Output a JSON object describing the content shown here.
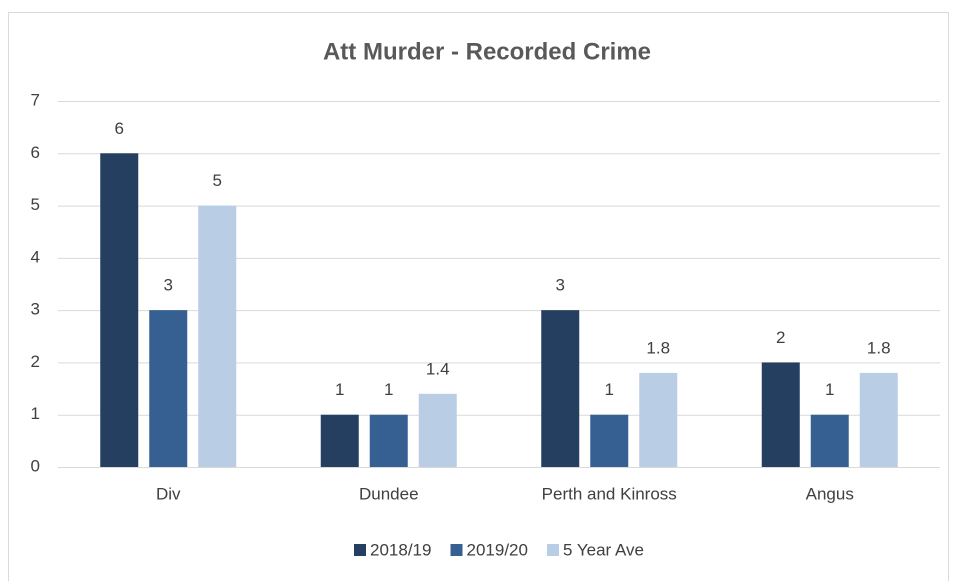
{
  "chart_data": {
    "type": "bar",
    "title": "Att Murder - Recorded Crime",
    "categories": [
      "Div",
      "Dundee",
      "Perth and Kinross",
      "Angus"
    ],
    "series": [
      {
        "name": "2018/19",
        "color": "#253f60",
        "values": [
          6,
          1,
          3,
          2
        ]
      },
      {
        "name": "2019/20",
        "color": "#376092",
        "values": [
          3,
          1,
          1,
          1
        ]
      },
      {
        "name": "5 Year Ave",
        "color": "#b9cde5",
        "values": [
          5,
          1.4,
          1.8,
          1.8
        ]
      }
    ],
    "ylim": [
      0,
      7
    ],
    "yticks": [
      0,
      1,
      2,
      3,
      4,
      5,
      6,
      7
    ],
    "grid": true,
    "legend": "bottom"
  }
}
